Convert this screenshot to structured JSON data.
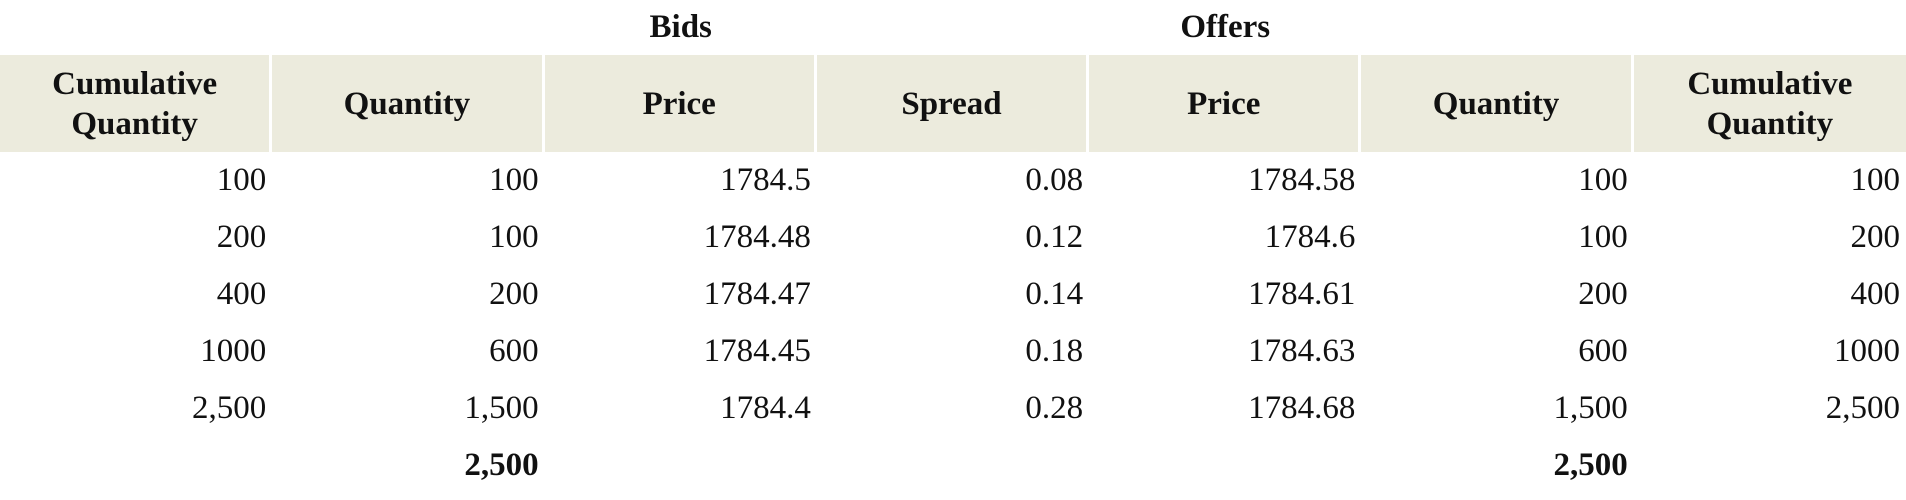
{
  "groups": [
    "Bids",
    "Offers"
  ],
  "headers": [
    "Cumulative Quantity",
    "Quantity",
    "Price",
    "Spread",
    "Price",
    "Quantity",
    "Cumulative Quantity"
  ],
  "rows": [
    [
      "100",
      "100",
      "1784.5",
      "0.08",
      "1784.58",
      "100",
      "100"
    ],
    [
      "200",
      "100",
      "1784.48",
      "0.12",
      "1784.6",
      "100",
      "200"
    ],
    [
      "400",
      "200",
      "1784.47",
      "0.14",
      "1784.61",
      "200",
      "400"
    ],
    [
      "1000",
      "600",
      "1784.45",
      "0.18",
      "1784.63",
      "600",
      "1000"
    ],
    [
      "2,500",
      "1,500",
      "1784.4",
      "0.28",
      "1784.68",
      "1,500",
      "2,500"
    ]
  ],
  "totals": {
    "bids_quantity": "2,500",
    "offers_quantity": "2,500"
  }
}
